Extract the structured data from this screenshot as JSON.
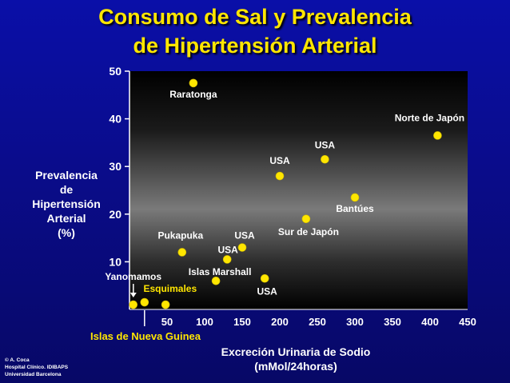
{
  "title_line1": "Consumo de Sal y Prevalencia",
  "title_line2": "de Hipertensión Arterial",
  "credit": "© A. Coca\nHospital Clínico. IDIBAPS\nUniversidad Barcelona",
  "colors": {
    "background": "#0a0c8a",
    "title": "#ffe600",
    "point": "#ffe600",
    "label_outside": "#ffe600"
  },
  "chart_data": {
    "type": "scatter",
    "title": "Consumo de Sal y Prevalencia de Hipertensión Arterial",
    "xlabel": "Excreción Urinaria de Sodio\n(mMol/24horas)",
    "ylabel": "Prevalencia\nde\nHipertensión\nArterial\n(%)",
    "xlim": [
      0,
      450
    ],
    "ylim": [
      0,
      50
    ],
    "xticks": [
      50,
      100,
      150,
      200,
      250,
      300,
      350,
      400,
      450
    ],
    "yticks": [
      10,
      20,
      30,
      40,
      50
    ],
    "grid": false,
    "points": [
      {
        "x": 85,
        "y": 47.5,
        "label": "Raratonga"
      },
      {
        "x": 410,
        "y": 36.5,
        "label": "Norte de Japón"
      },
      {
        "x": 260,
        "y": 31.5,
        "label": "USA"
      },
      {
        "x": 200,
        "y": 28,
        "label": "USA"
      },
      {
        "x": 300,
        "y": 23.5,
        "label": "Bantúes"
      },
      {
        "x": 235,
        "y": 19,
        "label": "Sur de Japón"
      },
      {
        "x": 70,
        "y": 12,
        "label": "Pukapuka"
      },
      {
        "x": 150,
        "y": 13,
        "label": "USA"
      },
      {
        "x": 130,
        "y": 10.5,
        "label": "USA"
      },
      {
        "x": 180,
        "y": 6.5,
        "label": "USA"
      },
      {
        "x": 115,
        "y": 6,
        "label": "Islas Marshall"
      },
      {
        "x": 5,
        "y": 1,
        "label": "Yanomamos"
      },
      {
        "x": 20,
        "y": 1.5,
        "label": "Esquimales"
      },
      {
        "x": 48,
        "y": 1,
        "label": ""
      }
    ],
    "annotation": "Islas de Nueva Guinea"
  }
}
